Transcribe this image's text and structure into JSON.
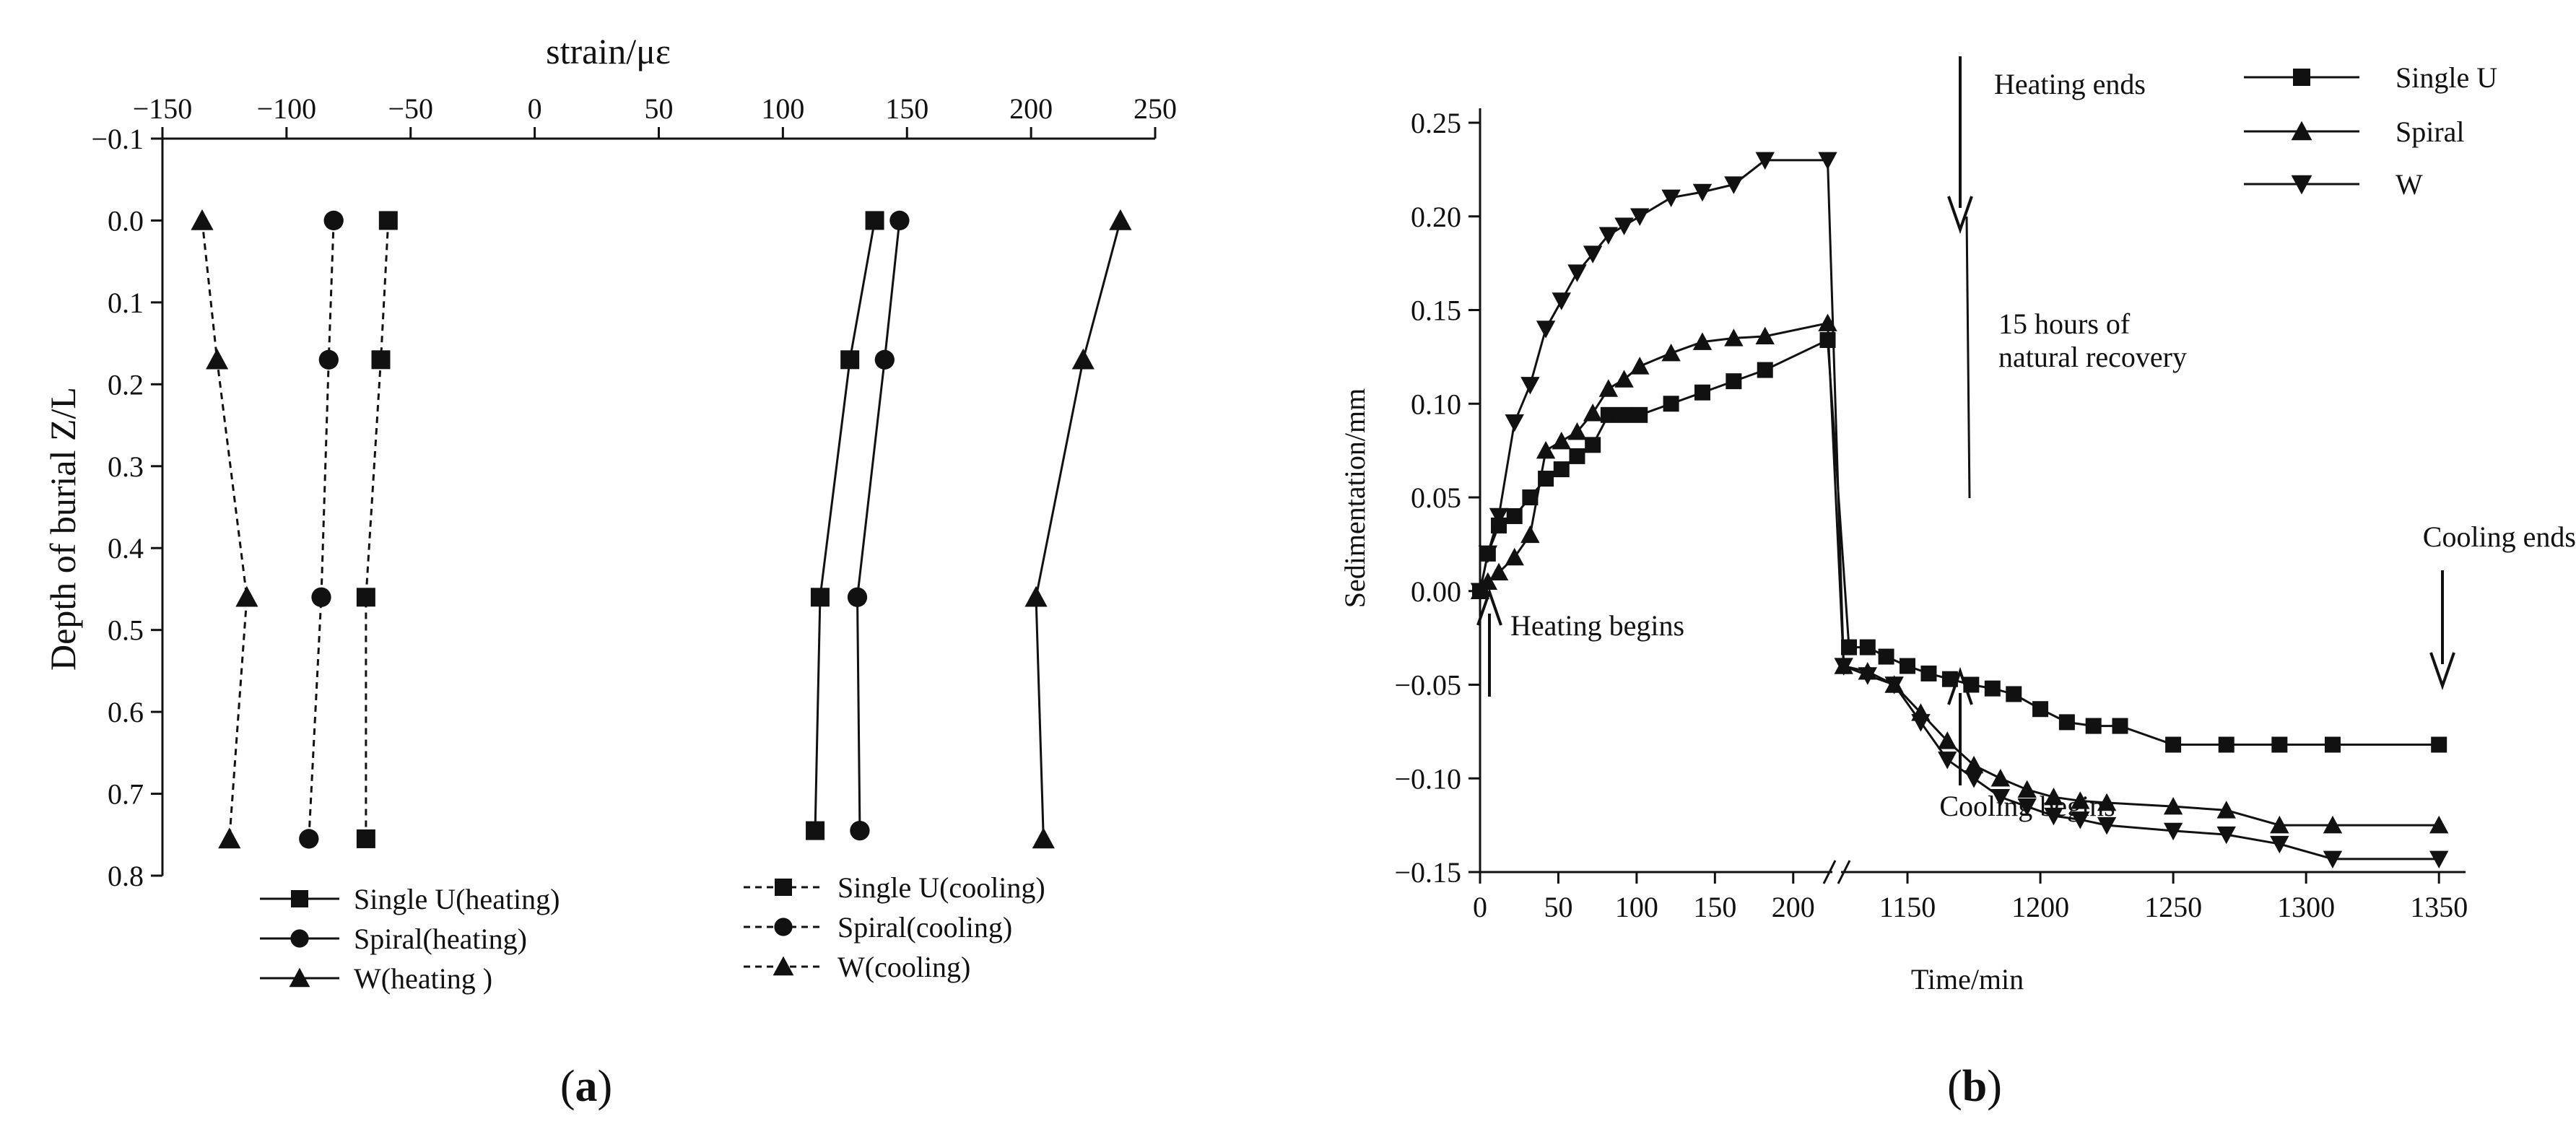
{
  "chart_data": [
    {
      "panel_label_prefix": "(",
      "panel_label_letter": "a",
      "panel_label_suffix": ")",
      "type": "line",
      "title": "",
      "xlabel": "strain/με",
      "ylabel": "Depth of burial Z/L",
      "xlim": [
        -150,
        250
      ],
      "ylim": [
        -0.1,
        0.8
      ],
      "y_inverted": true,
      "x_axis_position": "top",
      "x_ticks": [
        -150,
        -100,
        -50,
        0,
        50,
        100,
        150,
        200,
        250
      ],
      "x_tick_labels": [
        "−150",
        "−100",
        "−50",
        "0",
        "50",
        "100",
        "150",
        "200",
        "250"
      ],
      "y_ticks": [
        -0.1,
        0.0,
        0.1,
        0.2,
        0.3,
        0.4,
        0.5,
        0.6,
        0.7,
        0.8
      ],
      "y_tick_labels": [
        "−0.1",
        "0.0",
        "0.1",
        "0.2",
        "0.3",
        "0.4",
        "0.5",
        "0.6",
        "0.7",
        "0.8"
      ],
      "grid": false,
      "legend_position": "bottom",
      "series": [
        {
          "name": "Single U(heating)",
          "line": "solid",
          "marker": "square",
          "x": [
            137,
            127,
            115,
            113
          ],
          "y": [
            0.0,
            0.17,
            0.46,
            0.745
          ]
        },
        {
          "name": "Spiral(heating)",
          "line": "solid",
          "marker": "circle",
          "x": [
            147,
            141,
            130,
            131
          ],
          "y": [
            0.0,
            0.17,
            0.46,
            0.745
          ]
        },
        {
          "name": "W(heating )",
          "line": "solid",
          "marker": "triangle-up",
          "x": [
            236,
            221,
            202,
            205
          ],
          "y": [
            0.0,
            0.17,
            0.46,
            0.755
          ]
        },
        {
          "name": "Single U(cooling)",
          "line": "dashed",
          "marker": "square",
          "x": [
            -59,
            -62,
            -68,
            -68
          ],
          "y": [
            0.0,
            0.17,
            0.46,
            0.755
          ]
        },
        {
          "name": "Spiral(cooling)",
          "line": "dashed",
          "marker": "circle",
          "x": [
            -81,
            -83,
            -86,
            -91
          ],
          "y": [
            0.0,
            0.17,
            0.46,
            0.755
          ]
        },
        {
          "name": "W(cooling)",
          "line": "dashed",
          "marker": "triangle-up",
          "x": [
            -134,
            -128,
            -116,
            -123
          ],
          "y": [
            0.0,
            0.17,
            0.46,
            0.755
          ]
        }
      ]
    },
    {
      "panel_label_prefix": "(",
      "panel_label_letter": "b",
      "panel_label_suffix": ")",
      "type": "line",
      "title": "",
      "xlabel": "Time/min",
      "ylabel": "Sedimentation/mm",
      "ylim": [
        -0.15,
        0.25
      ],
      "x_axis_break": {
        "left_range": [
          0,
          225
        ],
        "right_range": [
          1125,
          1360
        ]
      },
      "x_ticks": [
        0,
        50,
        100,
        150,
        200,
        1150,
        1200,
        1250,
        1300,
        1350
      ],
      "x_tick_labels": [
        "0",
        "50",
        "100",
        "150",
        "200",
        "1150",
        "1200",
        "1250",
        "1300",
        "1350"
      ],
      "y_ticks": [
        -0.15,
        -0.1,
        -0.05,
        0.0,
        0.05,
        0.1,
        0.15,
        0.2,
        0.25
      ],
      "y_tick_labels": [
        "−0.15",
        "−0.10",
        "−0.05",
        "0.00",
        "0.05",
        "0.10",
        "0.15",
        "0.20",
        "0.25"
      ],
      "grid": false,
      "legend_position": "top-right",
      "series": [
        {
          "name": "Single U",
          "marker": "square",
          "x": [
            0,
            5,
            12,
            22,
            32,
            42,
            52,
            62,
            72,
            82,
            92,
            102,
            122,
            142,
            162,
            182,
            222,
            1128,
            1135,
            1142,
            1150,
            1158,
            1166,
            1174,
            1182,
            1190,
            1200,
            1210,
            1220,
            1230,
            1250,
            1270,
            1290,
            1310,
            1350
          ],
          "y": [
            0.0,
            0.02,
            0.035,
            0.04,
            0.05,
            0.06,
            0.065,
            0.072,
            0.078,
            0.094,
            0.094,
            0.094,
            0.1,
            0.106,
            0.112,
            0.118,
            0.134,
            -0.03,
            -0.03,
            -0.035,
            -0.04,
            -0.044,
            -0.047,
            -0.05,
            -0.052,
            -0.055,
            -0.063,
            -0.07,
            -0.072,
            -0.072,
            -0.082,
            -0.082,
            -0.082,
            -0.082,
            -0.082
          ]
        },
        {
          "name": "Spiral",
          "marker": "triangle-up",
          "x": [
            0,
            5,
            12,
            22,
            32,
            42,
            52,
            62,
            72,
            82,
            92,
            102,
            122,
            142,
            162,
            182,
            222,
            1126,
            1135,
            1145,
            1155,
            1165,
            1175,
            1185,
            1195,
            1205,
            1215,
            1225,
            1250,
            1270,
            1290,
            1310,
            1350
          ],
          "y": [
            0.0,
            0.005,
            0.01,
            0.018,
            0.03,
            0.075,
            0.08,
            0.085,
            0.095,
            0.108,
            0.113,
            0.12,
            0.127,
            0.133,
            0.135,
            0.136,
            0.143,
            -0.04,
            -0.043,
            -0.05,
            -0.065,
            -0.08,
            -0.093,
            -0.1,
            -0.106,
            -0.11,
            -0.112,
            -0.113,
            -0.115,
            -0.117,
            -0.125,
            -0.125,
            -0.125
          ]
        },
        {
          "name": "W",
          "marker": "triangle-down",
          "x": [
            0,
            5,
            12,
            22,
            32,
            42,
            52,
            62,
            72,
            82,
            92,
            102,
            122,
            142,
            162,
            182,
            222,
            1126,
            1135,
            1145,
            1155,
            1165,
            1175,
            1185,
            1195,
            1205,
            1215,
            1225,
            1250,
            1270,
            1290,
            1310,
            1350
          ],
          "y": [
            0.0,
            0.02,
            0.04,
            0.09,
            0.11,
            0.14,
            0.155,
            0.17,
            0.18,
            0.19,
            0.195,
            0.2,
            0.21,
            0.213,
            0.217,
            0.23,
            0.23,
            -0.04,
            -0.045,
            -0.05,
            -0.07,
            -0.09,
            -0.1,
            -0.11,
            -0.115,
            -0.12,
            -0.122,
            -0.125,
            -0.128,
            -0.13,
            -0.135,
            -0.143,
            -0.143
          ]
        }
      ],
      "annotations": [
        {
          "id": "heating-ends",
          "text": "Heating ends",
          "arrow": "down"
        },
        {
          "id": "natural-recovery-1",
          "text": "15 hours of"
        },
        {
          "id": "natural-recovery-2",
          "text": "natural recovery"
        },
        {
          "id": "heating-begins",
          "text": "Heating begins",
          "arrow": "up"
        },
        {
          "id": "cooling-begins",
          "text": "Cooling begins",
          "arrow": "up"
        },
        {
          "id": "cooling-ends",
          "text": "Cooling ends",
          "arrow": "down"
        }
      ]
    }
  ]
}
